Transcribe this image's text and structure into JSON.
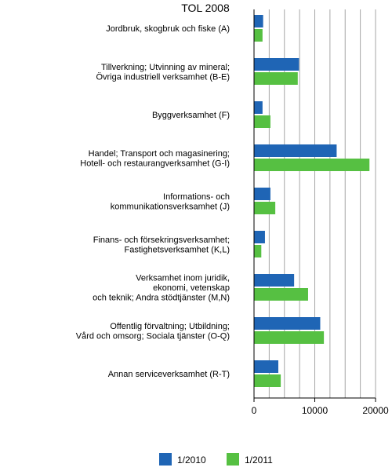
{
  "chart_data": {
    "type": "bar",
    "orientation": "horizontal",
    "title": "TOL 2008",
    "categories": [
      [
        "Jordbruk, skogbruk och fiske (A)"
      ],
      [
        "Tillverkning; Utvinning av mineral;",
        "Övriga industriell verksamhet (B-E)"
      ],
      [
        "Byggverksamhet (F)"
      ],
      [
        "Handel; Transport och magasinering;",
        "Hotell- och restaurangverksamhet (G-I)"
      ],
      [
        "Informations- och",
        "kommunikationsverksamhet (J)"
      ],
      [
        "Finans- och försekringsverksamhet;",
        "Fastighetsverksamhet (K,L)"
      ],
      [
        "Verksamhet inom juridik,",
        "ekonomi, vetenskap",
        "och teknik; Andra stödtjänster (M,N)"
      ],
      [
        "Offentlig förvaltning; Utbildning;",
        "Vård och omsorg; Sociala tjänster (O-Q)"
      ],
      [
        "Annan serviceverksamhet (R-T)"
      ]
    ],
    "series": [
      {
        "name": "1/2010",
        "color": "#1f65b5",
        "values": [
          1500,
          7400,
          1400,
          13600,
          2700,
          1800,
          6600,
          10900,
          4000
        ]
      },
      {
        "name": "1/2011",
        "color": "#56c042",
        "values": [
          1400,
          7200,
          2700,
          19000,
          3500,
          1200,
          8900,
          11500,
          4400
        ]
      }
    ],
    "xlim": [
      0,
      20000
    ],
    "xticks": [
      0,
      10000,
      20000
    ],
    "xtick_labels": [
      "0",
      "10000",
      "20000"
    ],
    "grid": "vertical",
    "legend": "bottom"
  }
}
